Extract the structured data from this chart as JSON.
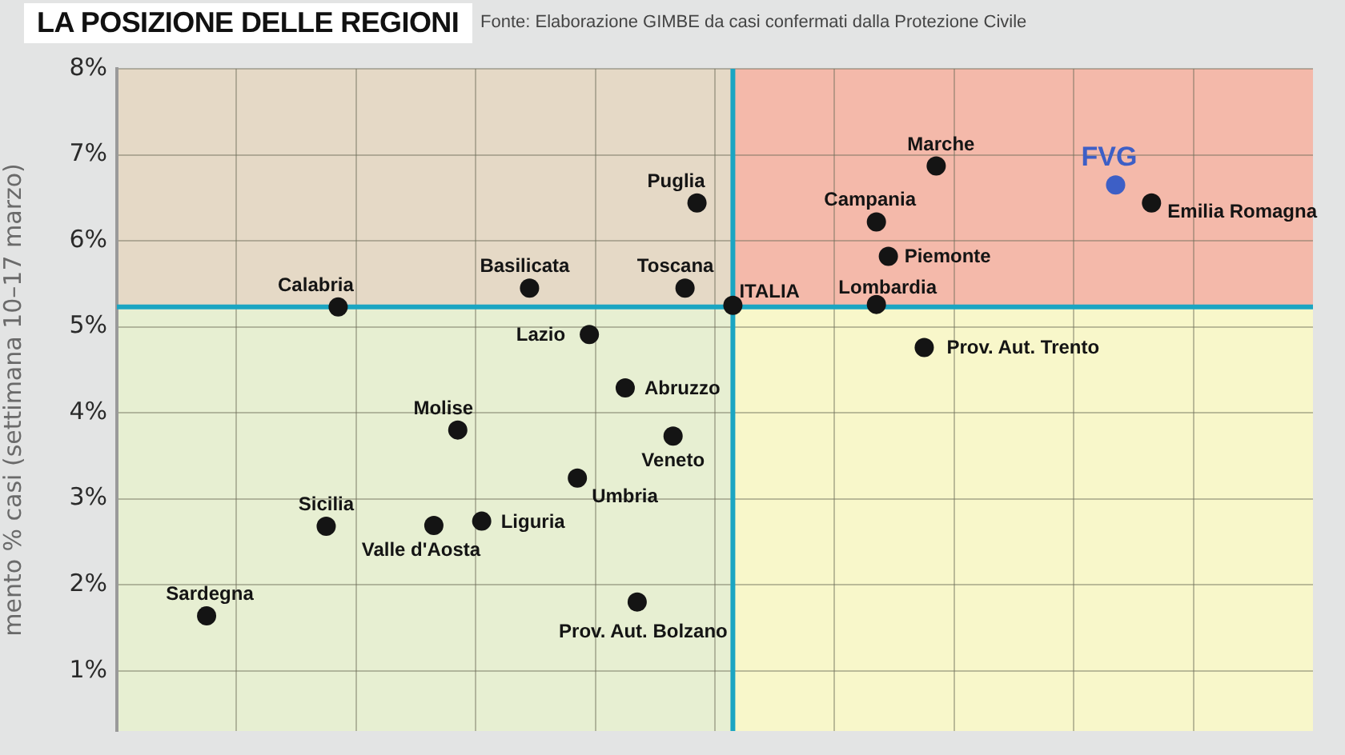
{
  "chart_data": {
    "type": "scatter",
    "title": "LA POSIZIONE DELLE REGIONI",
    "ylabel": "mento % casi (settimana 10–17 marzo)",
    "annotations": [
      "Fonte: Elaborazione GIMBE da casi confermati dalla Protezione Civile"
    ],
    "categories": [
      null,
      null,
      null,
      null,
      null,
      null,
      null,
      null,
      null,
      null,
      null,
      null,
      null,
      null,
      null,
      null,
      null,
      null,
      null,
      null,
      null,
      null,
      null,
      null,
      null,
      null,
      null,
      null,
      null,
      null,
      null,
      null,
      null,
      null,
      null,
      null,
      null,
      null,
      null,
      null,
      null,
      null,
      null,
      null,
      null,
      null,
      null,
      null,
      null,
      null,
      null,
      null,
      null,
      null,
      null,
      null,
      null,
      null,
      null,
      null,
      null,
      null,
      null,
      null,
      null,
      null,
      null,
      null,
      null,
      null,
      null,
      null,
      null,
      null,
      null,
      null,
      null,
      null,
      null,
      null,
      null,
      null,
      null,
      null,
      null,
      null,
      null,
      null,
      null,
      null,
      null,
      null,
      null,
      null,
      null,
      null,
      null,
      null,
      null,
      null
    ],
    "ylim": [
      0.3,
      8
    ],
    "yticks": [
      {
        "value": 1,
        "label": "1%"
      },
      {
        "value": 2,
        "label": "2%"
      },
      {
        "value": 3,
        "label": "3%"
      },
      {
        "value": 4,
        "label": "4%"
      },
      {
        "value": 5,
        "label": "5%"
      },
      {
        "value": 6,
        "label": "6%"
      },
      {
        "value": 7,
        "label": "7%"
      },
      {
        "value": 8,
        "label": "8%"
      }
    ],
    "tick_labels": "y",
    "grid": true,
    "marker": "circle",
    "bands": [
      {
        "axis": "y",
        "from": 5.23,
        "to": 8,
        "color": "#f4b9aa"
      }
    ],
    "ref_lines": [
      {
        "axis": "y",
        "value": 5.23,
        "color": "#1ba5c2"
      }
    ],
    "series": [
      {
        "name": "Lazio",
        "color": "#141414",
        "values": [
          null,
          null,
          null,
          null,
          null,
          null,
          null,
          null,
          null,
          null,
          null,
          null,
          null,
          null,
          null,
          null,
          null,
          null,
          null,
          null,
          null,
          null,
          null,
          null,
          null,
          null,
          null,
          null,
          null,
          null,
          null,
          null,
          null,
          null,
          null,
          null,
          null,
          null,
          null,
          4.91,
          null,
          null,
          null,
          null,
          null,
          null,
          null,
          null,
          null,
          null,
          null,
          null,
          null,
          null,
          null,
          null,
          null,
          null,
          null,
          null,
          null,
          null,
          null,
          null,
          null,
          null,
          null,
          null,
          null,
          null,
          null,
          null,
          null,
          null,
          null,
          null,
          null,
          null,
          null,
          null,
          null,
          null,
          null,
          null,
          null,
          null,
          null,
          null,
          null,
          null,
          null,
          null,
          null,
          null,
          null,
          null,
          null,
          null,
          null,
          null
        ]
      },
      {
        "name": "Sardegna",
        "color": "#141414",
        "values": [
          null,
          null,
          null,
          null,
          null,
          null,
          null,
          1.64,
          null,
          null,
          null,
          null,
          null,
          null,
          null,
          null,
          null,
          null,
          null,
          null,
          null,
          null,
          null,
          null,
          null,
          null,
          null,
          null,
          null,
          null,
          null,
          null,
          null,
          null,
          null,
          null,
          null,
          null,
          null,
          null,
          null,
          null,
          null,
          null,
          null,
          null,
          null,
          null,
          null,
          null,
          null,
          null,
          null,
          null,
          null,
          null,
          null,
          null,
          null,
          null,
          null,
          null,
          null,
          null,
          null,
          null,
          null,
          null,
          null,
          null,
          null,
          null,
          null,
          null,
          null,
          null,
          null,
          null,
          null,
          null,
          null,
          null,
          null,
          null,
          null,
          null,
          null,
          null,
          null,
          null,
          null,
          null,
          null,
          null,
          null,
          null,
          null,
          null,
          null,
          null
        ]
      },
      {
        "name": "Sicilia",
        "color": "#141414",
        "values": [
          null,
          null,
          null,
          null,
          null,
          null,
          null,
          null,
          null,
          null,
          null,
          null,
          null,
          null,
          null,
          null,
          null,
          2.68,
          null,
          null,
          null,
          null,
          null,
          null,
          null,
          null,
          null,
          null,
          null,
          null,
          null,
          null,
          null,
          null,
          null,
          null,
          null,
          null,
          null,
          null,
          null,
          null,
          null,
          null,
          null,
          null,
          null,
          null,
          null,
          null,
          null,
          null,
          null,
          null,
          null,
          null,
          null,
          null,
          null,
          null,
          null,
          null,
          null,
          null,
          null,
          null,
          null,
          null,
          null,
          null,
          null,
          null,
          null,
          null,
          null,
          null,
          null,
          null,
          null,
          null,
          null,
          null,
          null,
          null,
          null,
          null,
          null,
          null,
          null,
          null,
          null,
          null,
          null,
          null,
          null,
          null,
          null,
          null,
          null,
          null
        ]
      },
      {
        "name": "Calabria",
        "color": "#141414",
        "values": [
          null,
          null,
          null,
          null,
          null,
          null,
          null,
          null,
          null,
          null,
          null,
          null,
          null,
          null,
          null,
          null,
          null,
          null,
          5.23,
          null,
          null,
          null,
          null,
          null,
          null,
          null,
          null,
          null,
          null,
          null,
          null,
          null,
          null,
          null,
          null,
          null,
          null,
          null,
          null,
          null,
          null,
          null,
          null,
          null,
          null,
          null,
          null,
          null,
          null,
          null,
          null,
          null,
          null,
          null,
          null,
          null,
          null,
          null,
          null,
          null,
          null,
          null,
          null,
          null,
          null,
          null,
          null,
          null,
          null,
          null,
          null,
          null,
          null,
          null,
          null,
          null,
          null,
          null,
          null,
          null,
          null,
          null,
          null,
          null,
          null,
          null,
          null,
          null,
          null,
          null,
          null,
          null,
          null,
          null,
          null,
          null,
          null,
          null,
          null,
          null
        ]
      },
      {
        "name": "Valle d'Aosta",
        "color": "#141414",
        "values": [
          null,
          null,
          null,
          null,
          null,
          null,
          null,
          null,
          null,
          null,
          null,
          null,
          null,
          null,
          null,
          null,
          null,
          null,
          null,
          null,
          null,
          null,
          null,
          null,
          null,
          null,
          2.69,
          null,
          null,
          null,
          null,
          null,
          null,
          null,
          null,
          null,
          null,
          null,
          null,
          null,
          null,
          null,
          null,
          null,
          null,
          null,
          null,
          null,
          null,
          null,
          null,
          null,
          null,
          null,
          null,
          null,
          null,
          null,
          null,
          null,
          null,
          null,
          null,
          null,
          null,
          null,
          null,
          null,
          null,
          null,
          null,
          null,
          null,
          null,
          null,
          null,
          null,
          null,
          null,
          null,
          null,
          null,
          null,
          null,
          null,
          null,
          null,
          null,
          null,
          null,
          null,
          null,
          null,
          null,
          null,
          null,
          null,
          null,
          null,
          null
        ]
      },
      {
        "name": "Molise",
        "color": "#141414",
        "values": [
          null,
          null,
          null,
          null,
          null,
          null,
          null,
          null,
          null,
          null,
          null,
          null,
          null,
          null,
          null,
          null,
          null,
          null,
          null,
          null,
          null,
          null,
          null,
          null,
          null,
          null,
          null,
          null,
          3.8,
          null,
          null,
          null,
          null,
          null,
          null,
          null,
          null,
          null,
          null,
          null,
          null,
          null,
          null,
          null,
          null,
          null,
          null,
          null,
          null,
          null,
          null,
          null,
          null,
          null,
          null,
          null,
          null,
          null,
          null,
          null,
          null,
          null,
          null,
          null,
          null,
          null,
          null,
          null,
          null,
          null,
          null,
          null,
          null,
          null,
          null,
          null,
          null,
          null,
          null,
          null,
          null,
          null,
          null,
          null,
          null,
          null,
          null,
          null,
          null,
          null,
          null,
          null,
          null,
          null,
          null,
          null,
          null,
          null,
          null,
          null
        ]
      },
      {
        "name": "Liguria",
        "color": "#141414",
        "values": [
          null,
          null,
          null,
          null,
          null,
          null,
          null,
          null,
          null,
          null,
          null,
          null,
          null,
          null,
          null,
          null,
          null,
          null,
          null,
          null,
          null,
          null,
          null,
          null,
          null,
          null,
          null,
          null,
          null,
          null,
          2.74,
          null,
          null,
          null,
          null,
          null,
          null,
          null,
          null,
          null,
          null,
          null,
          null,
          null,
          null,
          null,
          null,
          null,
          null,
          null,
          null,
          null,
          null,
          null,
          null,
          null,
          null,
          null,
          null,
          null,
          null,
          null,
          null,
          null,
          null,
          null,
          null,
          null,
          null,
          null,
          null,
          null,
          null,
          null,
          null,
          null,
          null,
          null,
          null,
          null,
          null,
          null,
          null,
          null,
          null,
          null,
          null,
          null,
          null,
          null,
          null,
          null,
          null,
          null,
          null,
          null,
          null,
          null,
          null,
          null
        ]
      },
      {
        "name": "Basilicata",
        "color": "#141414",
        "values": [
          null,
          null,
          null,
          null,
          null,
          null,
          null,
          null,
          null,
          null,
          null,
          null,
          null,
          null,
          null,
          null,
          null,
          null,
          null,
          null,
          null,
          null,
          null,
          null,
          null,
          null,
          null,
          null,
          null,
          null,
          null,
          null,
          null,
          null,
          5.45,
          null,
          null,
          null,
          null,
          null,
          null,
          null,
          null,
          null,
          null,
          null,
          null,
          null,
          null,
          null,
          null,
          null,
          null,
          null,
          null,
          null,
          null,
          null,
          null,
          null,
          null,
          null,
          null,
          null,
          null,
          null,
          null,
          null,
          null,
          null,
          null,
          null,
          null,
          null,
          null,
          null,
          null,
          null,
          null,
          null,
          null,
          null,
          null,
          null,
          null,
          null,
          null,
          null,
          null,
          null,
          null,
          null,
          null,
          null,
          null,
          null,
          null,
          null,
          null,
          null
        ]
      },
      {
        "name": "Umbria",
        "color": "#141414",
        "values": [
          null,
          null,
          null,
          null,
          null,
          null,
          null,
          null,
          null,
          null,
          null,
          null,
          null,
          null,
          null,
          null,
          null,
          null,
          null,
          null,
          null,
          null,
          null,
          null,
          null,
          null,
          null,
          null,
          null,
          null,
          null,
          null,
          null,
          null,
          null,
          null,
          null,
          null,
          3.24,
          null,
          null,
          null,
          null,
          null,
          null,
          null,
          null,
          null,
          null,
          null,
          null,
          null,
          null,
          null,
          null,
          null,
          null,
          null,
          null,
          null,
          null,
          null,
          null,
          null,
          null,
          null,
          null,
          null,
          null,
          null,
          null,
          null,
          null,
          null,
          null,
          null,
          null,
          null,
          null,
          null,
          null,
          null,
          null,
          null,
          null,
          null,
          null,
          null,
          null,
          null,
          null,
          null,
          null,
          null,
          null,
          null,
          null,
          null,
          null,
          null
        ]
      },
      {
        "name": "Abruzzo",
        "color": "#141414",
        "values": [
          null,
          null,
          null,
          null,
          null,
          null,
          null,
          null,
          null,
          null,
          null,
          null,
          null,
          null,
          null,
          null,
          null,
          null,
          null,
          null,
          null,
          null,
          null,
          null,
          null,
          null,
          null,
          null,
          null,
          null,
          null,
          null,
          null,
          null,
          null,
          null,
          null,
          null,
          null,
          null,
          null,
          null,
          4.29,
          null,
          null,
          null,
          null,
          null,
          null,
          null,
          null,
          null,
          null,
          null,
          null,
          null,
          null,
          null,
          null,
          null,
          null,
          null,
          null,
          null,
          null,
          null,
          null,
          null,
          null,
          null,
          null,
          null,
          null,
          null,
          null,
          null,
          null,
          null,
          null,
          null,
          null,
          null,
          null,
          null,
          null,
          null,
          null,
          null,
          null,
          null,
          null,
          null,
          null,
          null,
          null,
          null,
          null,
          null,
          null,
          null
        ]
      },
      {
        "name": "Prov. Aut. Bolzano",
        "color": "#141414",
        "values": [
          null,
          null,
          null,
          null,
          null,
          null,
          null,
          null,
          null,
          null,
          null,
          null,
          null,
          null,
          null,
          null,
          null,
          null,
          null,
          null,
          null,
          null,
          null,
          null,
          null,
          null,
          null,
          null,
          null,
          null,
          null,
          null,
          null,
          null,
          null,
          null,
          null,
          null,
          null,
          null,
          null,
          null,
          null,
          1.8,
          null,
          null,
          null,
          null,
          null,
          null,
          null,
          null,
          null,
          null,
          null,
          null,
          null,
          null,
          null,
          null,
          null,
          null,
          null,
          null,
          null,
          null,
          null,
          null,
          null,
          null,
          null,
          null,
          null,
          null,
          null,
          null,
          null,
          null,
          null,
          null,
          null,
          null,
          null,
          null,
          null,
          null,
          null,
          null,
          null,
          null,
          null,
          null,
          null,
          null,
          null,
          null,
          null,
          null,
          null,
          null
        ]
      },
      {
        "name": "Veneto",
        "color": "#141414",
        "values": [
          null,
          null,
          null,
          null,
          null,
          null,
          null,
          null,
          null,
          null,
          null,
          null,
          null,
          null,
          null,
          null,
          null,
          null,
          null,
          null,
          null,
          null,
          null,
          null,
          null,
          null,
          null,
          null,
          null,
          null,
          null,
          null,
          null,
          null,
          null,
          null,
          null,
          null,
          null,
          null,
          null,
          null,
          null,
          null,
          null,
          null,
          3.73,
          null,
          null,
          null,
          null,
          null,
          null,
          null,
          null,
          null,
          null,
          null,
          null,
          null,
          null,
          null,
          null,
          null,
          null,
          null,
          null,
          null,
          null,
          null,
          null,
          null,
          null,
          null,
          null,
          null,
          null,
          null,
          null,
          null,
          null,
          null,
          null,
          null,
          null,
          null,
          null,
          null,
          null,
          null,
          null,
          null,
          null,
          null,
          null,
          null,
          null,
          null,
          null,
          null
        ]
      },
      {
        "name": "Toscana",
        "color": "#141414",
        "values": [
          null,
          null,
          null,
          null,
          null,
          null,
          null,
          null,
          null,
          null,
          null,
          null,
          null,
          null,
          null,
          null,
          null,
          null,
          null,
          null,
          null,
          null,
          null,
          null,
          null,
          null,
          null,
          null,
          null,
          null,
          null,
          null,
          null,
          null,
          null,
          null,
          null,
          null,
          null,
          null,
          null,
          null,
          null,
          null,
          null,
          null,
          null,
          5.45,
          null,
          null,
          null,
          null,
          null,
          null,
          null,
          null,
          null,
          null,
          null,
          null,
          null,
          null,
          null,
          null,
          null,
          null,
          null,
          null,
          null,
          null,
          null,
          null,
          null,
          null,
          null,
          null,
          null,
          null,
          null,
          null,
          null,
          null,
          null,
          null,
          null,
          null,
          null,
          null,
          null,
          null,
          null,
          null,
          null,
          null,
          null,
          null,
          null,
          null,
          null,
          null
        ]
      },
      {
        "name": "Puglia",
        "color": "#141414",
        "values": [
          null,
          null,
          null,
          null,
          null,
          null,
          null,
          null,
          null,
          null,
          null,
          null,
          null,
          null,
          null,
          null,
          null,
          null,
          null,
          null,
          null,
          null,
          null,
          null,
          null,
          null,
          null,
          null,
          null,
          null,
          null,
          null,
          null,
          null,
          null,
          null,
          null,
          null,
          null,
          null,
          null,
          null,
          null,
          null,
          null,
          null,
          null,
          null,
          6.44,
          null,
          null,
          null,
          null,
          null,
          null,
          null,
          null,
          null,
          null,
          null,
          null,
          null,
          null,
          null,
          null,
          null,
          null,
          null,
          null,
          null,
          null,
          null,
          null,
          null,
          null,
          null,
          null,
          null,
          null,
          null,
          null,
          null,
          null,
          null,
          null,
          null,
          null,
          null,
          null,
          null,
          null,
          null,
          null,
          null,
          null,
          null,
          null,
          null,
          null,
          null
        ]
      },
      {
        "name": "ITALIA",
        "color": "#141414",
        "values": [
          null,
          null,
          null,
          null,
          null,
          null,
          null,
          null,
          null,
          null,
          null,
          null,
          null,
          null,
          null,
          null,
          null,
          null,
          null,
          null,
          null,
          null,
          null,
          null,
          null,
          null,
          null,
          null,
          null,
          null,
          null,
          null,
          null,
          null,
          null,
          null,
          null,
          null,
          null,
          null,
          null,
          null,
          null,
          null,
          null,
          null,
          null,
          null,
          null,
          null,
          null,
          5.25,
          null,
          null,
          null,
          null,
          null,
          null,
          null,
          null,
          null,
          null,
          null,
          null,
          null,
          null,
          null,
          null,
          null,
          null,
          null,
          null,
          null,
          null,
          null,
          null,
          null,
          null,
          null,
          null,
          null,
          null,
          null,
          null,
          null,
          null,
          null,
          null,
          null,
          null,
          null,
          null,
          null,
          null,
          null,
          null,
          null,
          null,
          null,
          null
        ]
      },
      {
        "name": "Lombardia",
        "color": "#141414",
        "values": [
          null,
          null,
          null,
          null,
          null,
          null,
          null,
          null,
          null,
          null,
          null,
          null,
          null,
          null,
          null,
          null,
          null,
          null,
          null,
          null,
          null,
          null,
          null,
          null,
          null,
          null,
          null,
          null,
          null,
          null,
          null,
          null,
          null,
          null,
          null,
          null,
          null,
          null,
          null,
          null,
          null,
          null,
          null,
          null,
          null,
          null,
          null,
          null,
          null,
          null,
          null,
          null,
          null,
          null,
          null,
          null,
          null,
          null,
          null,
          null,
          null,
          null,
          null,
          5.26,
          null,
          null,
          null,
          null,
          null,
          null,
          null,
          null,
          null,
          null,
          null,
          null,
          null,
          null,
          null,
          null,
          null,
          null,
          null,
          null,
          null,
          null,
          null,
          null,
          null,
          null,
          null,
          null,
          null,
          null,
          null,
          null,
          null,
          null,
          null,
          null
        ]
      },
      {
        "name": "Campania",
        "color": "#141414",
        "values": [
          null,
          null,
          null,
          null,
          null,
          null,
          null,
          null,
          null,
          null,
          null,
          null,
          null,
          null,
          null,
          null,
          null,
          null,
          null,
          null,
          null,
          null,
          null,
          null,
          null,
          null,
          null,
          null,
          null,
          null,
          null,
          null,
          null,
          null,
          null,
          null,
          null,
          null,
          null,
          null,
          null,
          null,
          null,
          null,
          null,
          null,
          null,
          null,
          null,
          null,
          null,
          null,
          null,
          null,
          null,
          null,
          null,
          null,
          null,
          null,
          null,
          null,
          null,
          6.22,
          null,
          null,
          null,
          null,
          null,
          null,
          null,
          null,
          null,
          null,
          null,
          null,
          null,
          null,
          null,
          null,
          null,
          null,
          null,
          null,
          null,
          null,
          null,
          null,
          null,
          null,
          null,
          null,
          null,
          null,
          null,
          null,
          null,
          null,
          null,
          null
        ]
      },
      {
        "name": "Piemonte",
        "color": "#141414",
        "values": [
          null,
          null,
          null,
          null,
          null,
          null,
          null,
          null,
          null,
          null,
          null,
          null,
          null,
          null,
          null,
          null,
          null,
          null,
          null,
          null,
          null,
          null,
          null,
          null,
          null,
          null,
          null,
          null,
          null,
          null,
          null,
          null,
          null,
          null,
          null,
          null,
          null,
          null,
          null,
          null,
          null,
          null,
          null,
          null,
          null,
          null,
          null,
          null,
          null,
          null,
          null,
          null,
          null,
          null,
          null,
          null,
          null,
          null,
          null,
          null,
          null,
          null,
          null,
          null,
          5.82,
          null,
          null,
          null,
          null,
          null,
          null,
          null,
          null,
          null,
          null,
          null,
          null,
          null,
          null,
          null,
          null,
          null,
          null,
          null,
          null,
          null,
          null,
          null,
          null,
          null,
          null,
          null,
          null,
          null,
          null,
          null,
          null,
          null,
          null,
          null
        ]
      },
      {
        "name": "Prov. Aut. Trento",
        "color": "#141414",
        "values": [
          null,
          null,
          null,
          null,
          null,
          null,
          null,
          null,
          null,
          null,
          null,
          null,
          null,
          null,
          null,
          null,
          null,
          null,
          null,
          null,
          null,
          null,
          null,
          null,
          null,
          null,
          null,
          null,
          null,
          null,
          null,
          null,
          null,
          null,
          null,
          null,
          null,
          null,
          null,
          null,
          null,
          null,
          null,
          null,
          null,
          null,
          null,
          null,
          null,
          null,
          null,
          null,
          null,
          null,
          null,
          null,
          null,
          null,
          null,
          null,
          null,
          null,
          null,
          null,
          null,
          null,
          null,
          4.76,
          null,
          null,
          null,
          null,
          null,
          null,
          null,
          null,
          null,
          null,
          null,
          null,
          null,
          null,
          null,
          null,
          null,
          null,
          null,
          null,
          null,
          null,
          null,
          null,
          null,
          null,
          null,
          null,
          null,
          null,
          null,
          null
        ]
      },
      {
        "name": "Marche",
        "color": "#141414",
        "values": [
          null,
          null,
          null,
          null,
          null,
          null,
          null,
          null,
          null,
          null,
          null,
          null,
          null,
          null,
          null,
          null,
          null,
          null,
          null,
          null,
          null,
          null,
          null,
          null,
          null,
          null,
          null,
          null,
          null,
          null,
          null,
          null,
          null,
          null,
          null,
          null,
          null,
          null,
          null,
          null,
          null,
          null,
          null,
          null,
          null,
          null,
          null,
          null,
          null,
          null,
          null,
          null,
          null,
          null,
          null,
          null,
          null,
          null,
          null,
          null,
          null,
          null,
          null,
          null,
          null,
          null,
          null,
          null,
          6.87,
          null,
          null,
          null,
          null,
          null,
          null,
          null,
          null,
          null,
          null,
          null,
          null,
          null,
          null,
          null,
          null,
          null,
          null,
          null,
          null,
          null,
          null,
          null,
          null,
          null,
          null,
          null,
          null,
          null,
          null,
          null
        ]
      },
      {
        "name": "FVG",
        "color": "#3d5fc6",
        "values": [
          null,
          null,
          null,
          null,
          null,
          null,
          null,
          null,
          null,
          null,
          null,
          null,
          null,
          null,
          null,
          null,
          null,
          null,
          null,
          null,
          null,
          null,
          null,
          null,
          null,
          null,
          null,
          null,
          null,
          null,
          null,
          null,
          null,
          null,
          null,
          null,
          null,
          null,
          null,
          null,
          null,
          null,
          null,
          null,
          null,
          null,
          null,
          null,
          null,
          null,
          null,
          null,
          null,
          null,
          null,
          null,
          null,
          null,
          null,
          null,
          null,
          null,
          null,
          null,
          null,
          null,
          null,
          null,
          null,
          null,
          null,
          null,
          null,
          null,
          null,
          null,
          null,
          null,
          null,
          null,
          null,
          null,
          null,
          6.65,
          null,
          null,
          null,
          null,
          null,
          null,
          null,
          null,
          null,
          null,
          null,
          null,
          null,
          null,
          null,
          null
        ]
      },
      {
        "name": "Emilia Romagna",
        "color": "#141414",
        "values": [
          null,
          null,
          null,
          null,
          null,
          null,
          null,
          null,
          null,
          null,
          null,
          null,
          null,
          null,
          null,
          null,
          null,
          null,
          null,
          null,
          null,
          null,
          null,
          null,
          null,
          null,
          null,
          null,
          null,
          null,
          null,
          null,
          null,
          null,
          null,
          null,
          null,
          null,
          null,
          null,
          null,
          null,
          null,
          null,
          null,
          null,
          null,
          null,
          null,
          null,
          null,
          null,
          null,
          null,
          null,
          null,
          null,
          null,
          null,
          null,
          null,
          null,
          null,
          null,
          null,
          null,
          null,
          null,
          null,
          null,
          null,
          null,
          null,
          null,
          null,
          null,
          null,
          null,
          null,
          null,
          null,
          null,
          null,
          null,
          null,
          null,
          6.44,
          null,
          null,
          null,
          null,
          null,
          null,
          null,
          null,
          null,
          null,
          null,
          null,
          null
        ]
      }
    ]
  }
}
